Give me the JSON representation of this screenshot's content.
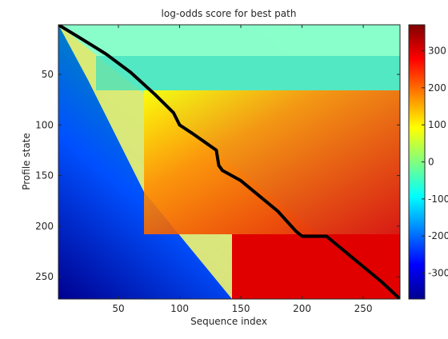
{
  "chart_data": {
    "type": "heatmap",
    "title": "log-odds score for best path",
    "xlabel": "Sequence index",
    "ylabel": "Profile state",
    "xlim": [
      1,
      280
    ],
    "ylim": [
      1,
      272
    ],
    "y_direction": "reversed",
    "x_ticks": [
      50,
      100,
      150,
      200,
      250
    ],
    "y_ticks": [
      50,
      100,
      150,
      200,
      250
    ],
    "colormap": "jet",
    "colorbar": {
      "ticks": [
        300,
        200,
        100,
        0,
        -100,
        -200,
        -300
      ],
      "tick_labels": [
        "300",
        "200",
        "100",
        "0",
        "-100",
        "-200",
        "-300"
      ],
      "range": [
        -370,
        370
      ],
      "colors": [
        "#00008f",
        "#0000ff",
        "#00ffff",
        "#ffff00",
        "#ff0000",
        "#800000"
      ]
    },
    "heatmap_description_bands": [
      {
        "y_from": 1,
        "y_to": 30,
        "value_approx": -60
      },
      {
        "y_from": 30,
        "y_to": 65,
        "value_approx": -80
      },
      {
        "y_from": 65,
        "y_to": 210,
        "value_approx": 100
      },
      {
        "y_from": 210,
        "y_to": 272,
        "value_approx": 250
      }
    ],
    "series": [
      {
        "type": "line",
        "color": "#000000",
        "x": [
          1,
          20,
          40,
          60,
          80,
          95,
          100,
          110,
          130,
          132,
          135,
          150,
          160,
          180,
          195,
          200,
          220,
          225,
          240,
          250,
          265,
          280
        ],
        "y": [
          1,
          15,
          30,
          48,
          70,
          88,
          100,
          108,
          125,
          140,
          145,
          155,
          165,
          185,
          205,
          210,
          210,
          215,
          230,
          240,
          255,
          272
        ]
      }
    ]
  }
}
